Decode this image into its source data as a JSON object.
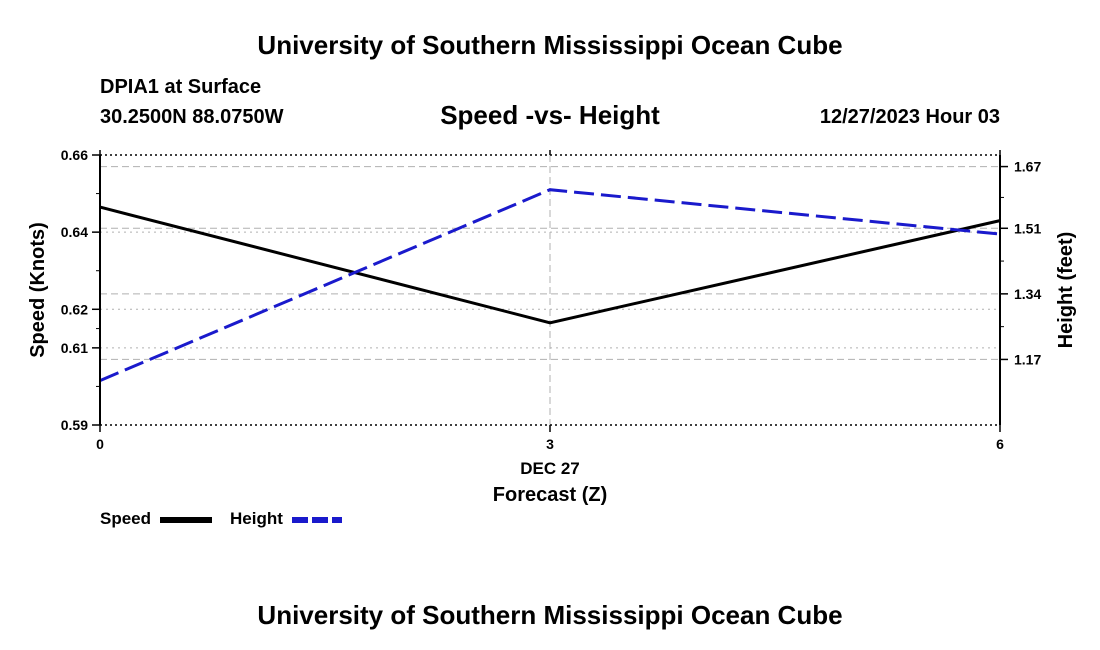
{
  "header": {
    "title_top": "University of Southern Mississippi Ocean Cube",
    "station": "DPIA1 at Surface",
    "coords": "30.2500N  88.0750W",
    "chart_title": "Speed -vs- Height",
    "datetime": "12/27/2023 Hour 03",
    "title_bottom": "University of Southern Mississippi Ocean Cube"
  },
  "legend": {
    "speed_label": "Speed",
    "height_label": "Height"
  },
  "colors": {
    "speed": "#000000",
    "height": "#1a1acc",
    "grid": "#b0b0b0"
  },
  "chart_data": {
    "type": "line",
    "title": "Speed -vs- Height",
    "x": [
      0,
      3,
      6
    ],
    "xlabel": "Forecast (Z)",
    "x_ticks": [
      "0",
      "3",
      "6"
    ],
    "x_sublabel": "DEC 27",
    "xlim": [
      0,
      6
    ],
    "left_axis": {
      "label": "Speed (Knots)",
      "ticks": [
        0.59,
        0.61,
        0.62,
        0.64,
        0.66
      ],
      "tick_labels": [
        "0.59",
        "0.61",
        "0.62",
        "0.64",
        "0.66"
      ],
      "ylim": [
        0.59,
        0.66
      ]
    },
    "right_axis": {
      "label": "Height (feet)",
      "ticks": [
        1.17,
        1.34,
        1.51,
        1.67
      ],
      "tick_labels": [
        "1.17",
        "1.34",
        "1.51",
        "1.67"
      ],
      "ylim": [
        1.0,
        1.7
      ]
    },
    "series": [
      {
        "name": "Speed",
        "axis": "left",
        "style": "solid",
        "values": [
          0.6465,
          0.6165,
          0.643
        ]
      },
      {
        "name": "Height",
        "axis": "right",
        "style": "dashed",
        "values": [
          1.115,
          1.61,
          1.495
        ]
      }
    ]
  }
}
